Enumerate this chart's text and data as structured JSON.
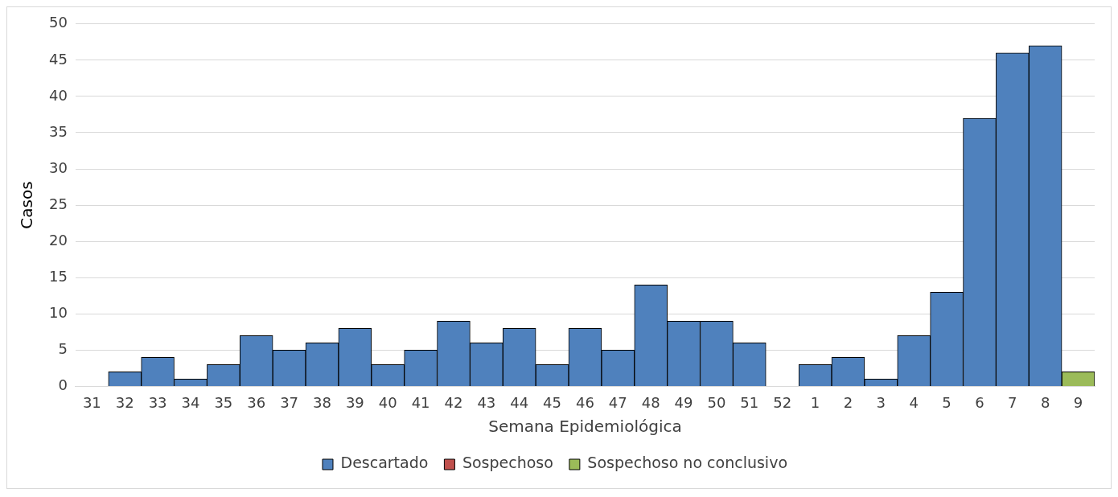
{
  "chart_data": {
    "type": "bar",
    "xlabel": "Semana Epidemiológica",
    "ylabel": "Casos",
    "categories": [
      "31",
      "32",
      "33",
      "34",
      "35",
      "36",
      "37",
      "38",
      "39",
      "40",
      "41",
      "42",
      "43",
      "44",
      "45",
      "46",
      "47",
      "48",
      "49",
      "50",
      "51",
      "52",
      "1",
      "2",
      "3",
      "4",
      "5",
      "6",
      "7",
      "8",
      "9"
    ],
    "series": [
      {
        "name": "Descartado",
        "color": "#4f81bd",
        "values": [
          0,
          2,
          4,
          1,
          3,
          7,
          5,
          6,
          8,
          3,
          5,
          9,
          6,
          8,
          3,
          8,
          5,
          14,
          9,
          9,
          6,
          0,
          3,
          4,
          1,
          7,
          13,
          37,
          46,
          47,
          0
        ]
      },
      {
        "name": "Sospechoso",
        "color": "#c0504d",
        "values": [
          0,
          0,
          0,
          0,
          0,
          0,
          0,
          0,
          0,
          0,
          0,
          0,
          0,
          0,
          0,
          0,
          0,
          0,
          0,
          0,
          0,
          0,
          0,
          0,
          0,
          0,
          0,
          0,
          0,
          0,
          0
        ]
      },
      {
        "name": "Sospechoso no conclusivo",
        "color": "#9bbb59",
        "values": [
          0,
          0,
          0,
          0,
          0,
          0,
          0,
          0,
          0,
          0,
          0,
          0,
          0,
          0,
          0,
          0,
          0,
          0,
          0,
          0,
          0,
          0,
          0,
          0,
          0,
          0,
          0,
          0,
          0,
          0,
          2
        ]
      }
    ],
    "stacked": true,
    "ylim": [
      0,
      50
    ],
    "yticks": [
      0,
      5,
      10,
      15,
      20,
      25,
      30,
      35,
      40,
      45,
      50
    ],
    "grid": "y",
    "legend": "bottom"
  }
}
